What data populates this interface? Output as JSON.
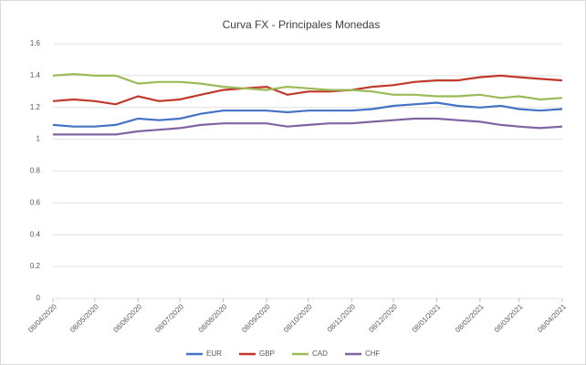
{
  "chart_data": {
    "type": "line",
    "title": "Curva FX - Principales Monedas",
    "x": [
      "08/04/2020",
      "23/04/2020",
      "08/05/2020",
      "23/05/2020",
      "08/06/2020",
      "23/06/2020",
      "08/07/2020",
      "23/07/2020",
      "08/08/2020",
      "23/08/2020",
      "08/09/2020",
      "23/09/2020",
      "08/10/2020",
      "23/10/2020",
      "08/11/2020",
      "23/11/2020",
      "08/12/2020",
      "23/12/2020",
      "08/01/2021",
      "23/01/2021",
      "08/02/2021",
      "23/02/2021",
      "08/03/2021",
      "23/03/2021",
      "08/04/2021"
    ],
    "series": [
      {
        "name": "EUR",
        "color": "#4472c4",
        "values": [
          1.09,
          1.08,
          1.08,
          1.09,
          1.13,
          1.12,
          1.13,
          1.16,
          1.18,
          1.18,
          1.18,
          1.17,
          1.18,
          1.18,
          1.18,
          1.19,
          1.21,
          1.22,
          1.23,
          1.21,
          1.2,
          1.21,
          1.19,
          1.18,
          1.19
        ]
      },
      {
        "name": "GBP",
        "color": "#c0392b",
        "values": [
          1.24,
          1.25,
          1.24,
          1.22,
          1.27,
          1.24,
          1.25,
          1.28,
          1.31,
          1.32,
          1.33,
          1.28,
          1.3,
          1.3,
          1.31,
          1.33,
          1.34,
          1.36,
          1.37,
          1.37,
          1.39,
          1.4,
          1.39,
          1.38,
          1.37
        ]
      },
      {
        "name": "CAD",
        "color": "#9bbb59",
        "values": [
          1.4,
          1.41,
          1.4,
          1.4,
          1.35,
          1.36,
          1.36,
          1.35,
          1.33,
          1.32,
          1.31,
          1.33,
          1.32,
          1.31,
          1.31,
          1.3,
          1.28,
          1.28,
          1.27,
          1.27,
          1.28,
          1.26,
          1.27,
          1.25,
          1.26
        ]
      },
      {
        "name": "CHF",
        "color": "#8064a2",
        "values": [
          1.03,
          1.03,
          1.03,
          1.03,
          1.05,
          1.06,
          1.07,
          1.09,
          1.1,
          1.1,
          1.1,
          1.08,
          1.09,
          1.1,
          1.1,
          1.11,
          1.12,
          1.13,
          1.13,
          1.12,
          1.11,
          1.09,
          1.08,
          1.07,
          1.08
        ]
      }
    ],
    "xlim": [
      "08/04/2020",
      "08/04/2021"
    ],
    "xticks": [
      "08/04/2020",
      "08/05/2020",
      "08/06/2020",
      "08/07/2020",
      "08/08/2020",
      "08/09/2020",
      "08/10/2020",
      "08/11/2020",
      "08/12/2020",
      "08/01/2021",
      "08/02/2021",
      "08/03/2021",
      "08/04/2021"
    ],
    "ylim": [
      0,
      1.6
    ],
    "yticks": [
      0,
      0.2,
      0.4,
      0.6,
      0.8,
      1,
      1.2,
      1.4,
      1.6
    ],
    "grid": true,
    "legend": "bottom"
  }
}
